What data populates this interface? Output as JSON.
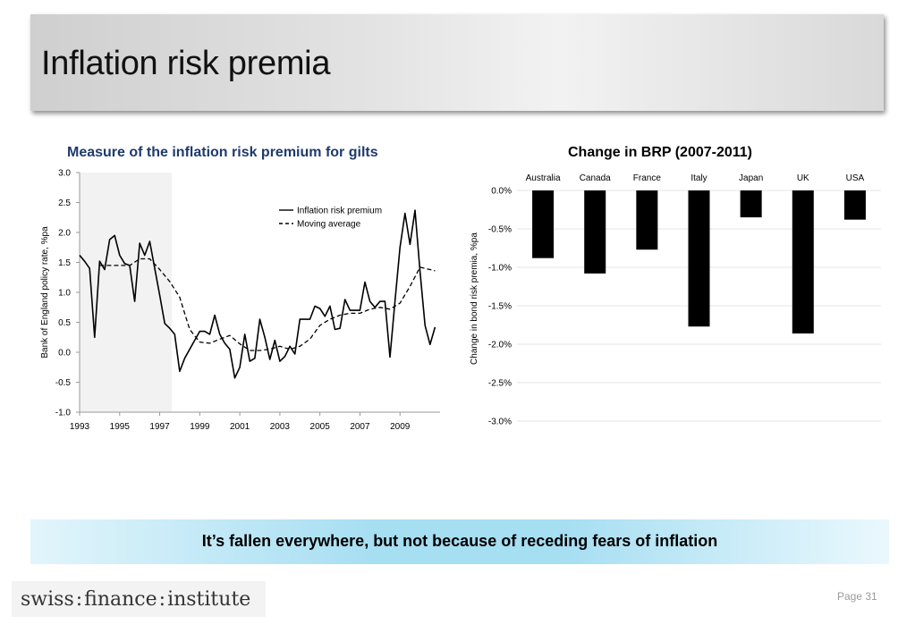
{
  "slide": {
    "title": "Inflation risk premia",
    "takeaway": "It’s fallen everywhere, but not because of receding fears of inflation",
    "page": "Page 31",
    "logo": {
      "part1": "swiss",
      "part2": "finance",
      "part3": "institute"
    }
  },
  "chart_data": [
    {
      "type": "line",
      "title": "Measure of the inflation risk premium for gilts",
      "xlabel": "",
      "ylabel": "Bank of England policy rate, %pa",
      "xlim": [
        1993,
        2011
      ],
      "ylim": [
        -1.0,
        3.0
      ],
      "x_tick_labels": [
        "1993",
        "1995",
        "1997",
        "1999",
        "2001",
        "2003",
        "2005",
        "2007",
        "2009"
      ],
      "x_ticks": [
        1993,
        1995,
        1997,
        1999,
        2001,
        2003,
        2005,
        2007,
        2009
      ],
      "y_tick_labels": [
        "3.0",
        "2.5",
        "2.0",
        "1.5",
        "1.0",
        "0.5",
        "0.0",
        "-0.5",
        "-1.0"
      ],
      "y_ticks": [
        3.0,
        2.5,
        2.0,
        1.5,
        1.0,
        0.5,
        0.0,
        -0.5,
        -1.0
      ],
      "shaded_region": [
        1993,
        1997.6
      ],
      "legend_position": "top-right",
      "series": [
        {
          "name": "Inflation risk premium",
          "style": "solid",
          "points": [
            [
              1993.0,
              1.62
            ],
            [
              1993.25,
              1.52
            ],
            [
              1993.5,
              1.4
            ],
            [
              1993.75,
              0.25
            ],
            [
              1994.0,
              1.52
            ],
            [
              1994.25,
              1.38
            ],
            [
              1994.5,
              1.88
            ],
            [
              1994.75,
              1.95
            ],
            [
              1995.0,
              1.62
            ],
            [
              1995.25,
              1.48
            ],
            [
              1995.5,
              1.45
            ],
            [
              1995.75,
              0.85
            ],
            [
              1996.0,
              1.82
            ],
            [
              1996.25,
              1.62
            ],
            [
              1996.5,
              1.85
            ],
            [
              1996.75,
              1.4
            ],
            [
              1997.0,
              0.95
            ],
            [
              1997.25,
              0.48
            ],
            [
              1997.5,
              0.4
            ],
            [
              1997.75,
              0.3
            ],
            [
              1998.0,
              -0.32
            ],
            [
              1998.25,
              -0.1
            ],
            [
              1998.5,
              0.05
            ],
            [
              1998.75,
              0.2
            ],
            [
              1999.0,
              0.35
            ],
            [
              1999.25,
              0.35
            ],
            [
              1999.5,
              0.3
            ],
            [
              1999.75,
              0.62
            ],
            [
              2000.0,
              0.3
            ],
            [
              2000.25,
              0.15
            ],
            [
              2000.5,
              0.05
            ],
            [
              2000.75,
              -0.43
            ],
            [
              2001.0,
              -0.25
            ],
            [
              2001.25,
              0.3
            ],
            [
              2001.5,
              -0.15
            ],
            [
              2001.75,
              -0.1
            ],
            [
              2002.0,
              0.55
            ],
            [
              2002.25,
              0.25
            ],
            [
              2002.5,
              -0.12
            ],
            [
              2002.75,
              0.2
            ],
            [
              2003.0,
              -0.15
            ],
            [
              2003.25,
              -0.07
            ],
            [
              2003.5,
              0.1
            ],
            [
              2003.75,
              -0.03
            ],
            [
              2004.0,
              0.55
            ],
            [
              2004.25,
              0.55
            ],
            [
              2004.5,
              0.55
            ],
            [
              2004.75,
              0.77
            ],
            [
              2005.0,
              0.73
            ],
            [
              2005.25,
              0.6
            ],
            [
              2005.5,
              0.77
            ],
            [
              2005.75,
              0.38
            ],
            [
              2006.0,
              0.4
            ],
            [
              2006.25,
              0.88
            ],
            [
              2006.5,
              0.7
            ],
            [
              2006.75,
              0.7
            ],
            [
              2007.0,
              0.7
            ],
            [
              2007.25,
              1.17
            ],
            [
              2007.5,
              0.85
            ],
            [
              2007.75,
              0.75
            ],
            [
              2008.0,
              0.85
            ],
            [
              2008.25,
              0.85
            ],
            [
              2008.5,
              -0.08
            ],
            [
              2008.75,
              0.85
            ],
            [
              2009.0,
              1.75
            ],
            [
              2009.25,
              2.32
            ],
            [
              2009.5,
              1.8
            ],
            [
              2009.75,
              2.37
            ],
            [
              2010.0,
              1.35
            ],
            [
              2010.25,
              0.45
            ],
            [
              2010.5,
              0.13
            ],
            [
              2010.75,
              0.42
            ]
          ]
        },
        {
          "name": "Moving average",
          "style": "dashed",
          "points": [
            [
              1994.0,
              1.45
            ],
            [
              1994.5,
              1.45
            ],
            [
              1995.0,
              1.45
            ],
            [
              1995.5,
              1.45
            ],
            [
              1996.0,
              1.56
            ],
            [
              1996.5,
              1.56
            ],
            [
              1997.0,
              1.38
            ],
            [
              1997.5,
              1.18
            ],
            [
              1998.0,
              0.92
            ],
            [
              1998.5,
              0.38
            ],
            [
              1999.0,
              0.17
            ],
            [
              1999.5,
              0.15
            ],
            [
              2000.0,
              0.22
            ],
            [
              2000.5,
              0.28
            ],
            [
              2001.0,
              0.14
            ],
            [
              2001.5,
              0.03
            ],
            [
              2002.0,
              0.03
            ],
            [
              2002.5,
              0.05
            ],
            [
              2003.0,
              0.1
            ],
            [
              2003.5,
              0.05
            ],
            [
              2004.0,
              0.1
            ],
            [
              2004.5,
              0.22
            ],
            [
              2005.0,
              0.45
            ],
            [
              2005.5,
              0.55
            ],
            [
              2006.0,
              0.62
            ],
            [
              2006.5,
              0.65
            ],
            [
              2007.0,
              0.65
            ],
            [
              2007.5,
              0.72
            ],
            [
              2008.0,
              0.75
            ],
            [
              2008.5,
              0.72
            ],
            [
              2009.0,
              0.82
            ],
            [
              2009.5,
              1.1
            ],
            [
              2010.0,
              1.42
            ],
            [
              2010.5,
              1.38
            ],
            [
              2010.75,
              1.36
            ]
          ]
        }
      ]
    },
    {
      "type": "bar",
      "title": "Change in BRP (2007-2011)",
      "xlabel": "",
      "ylabel": "Change in bond risk premia, %pa",
      "categories": [
        "Australia",
        "Canada",
        "France",
        "Italy",
        "Japan",
        "UK",
        "USA"
      ],
      "values": [
        -0.88,
        -1.08,
        -0.77,
        -1.77,
        -0.35,
        -1.86,
        -0.38
      ],
      "unit": "%",
      "ylim": [
        -3.0,
        0.0
      ],
      "y_tick_labels": [
        "0.0%",
        "-0.5%",
        "-1.0%",
        "-1.5%",
        "-2.0%",
        "-2.5%",
        "-3.0%"
      ],
      "y_ticks": [
        0.0,
        -0.5,
        -1.0,
        -1.5,
        -2.0,
        -2.5,
        -3.0
      ],
      "bar_color": "#000000",
      "grid": true,
      "category_labels_position": "top"
    }
  ]
}
